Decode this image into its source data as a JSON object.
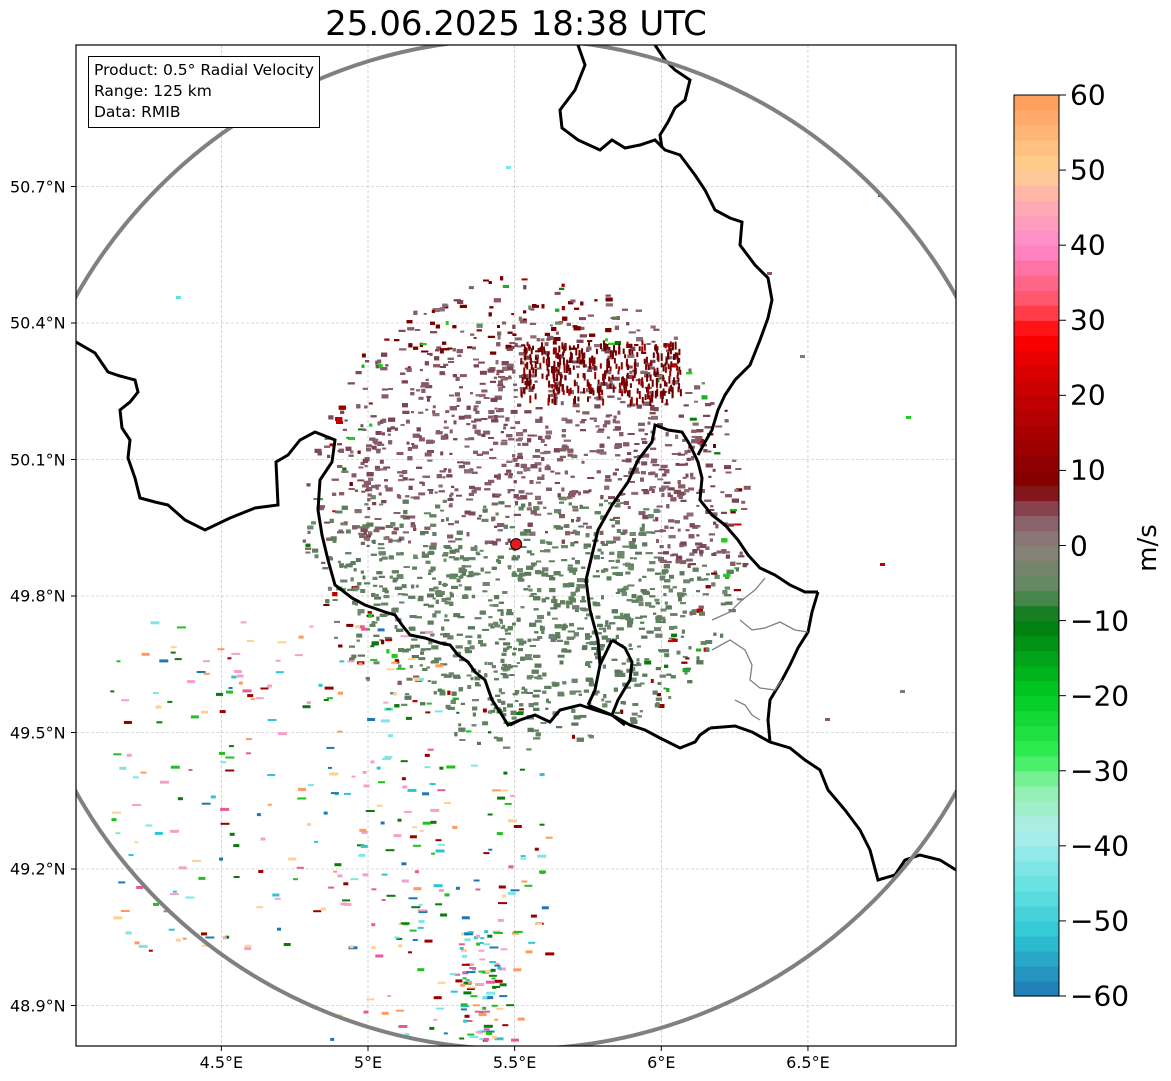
{
  "title": "25.06.2025 18:38 UTC",
  "infobox": {
    "product": "Product: 0.5° Radial Velocity",
    "range": "Range: 125 km",
    "data": "Data: RMIB"
  },
  "map": {
    "lon_range": [
      4.0,
      7.0
    ],
    "lat_range": [
      48.8,
      51.1
    ],
    "lat_ticks": [
      {
        "value": 50.7,
        "label": "50.7°N"
      },
      {
        "value": 50.4,
        "label": "50.4°N"
      },
      {
        "value": 50.1,
        "label": "50.1°N"
      },
      {
        "value": 49.8,
        "label": "49.8°N"
      },
      {
        "value": 49.5,
        "label": "49.5°N"
      },
      {
        "value": 49.2,
        "label": "49.2°N"
      },
      {
        "value": 48.9,
        "label": "48.9°N"
      }
    ],
    "lon_ticks": [
      {
        "value": 4.5,
        "label": "4.5°E"
      },
      {
        "value": 5.0,
        "label": "5°E"
      },
      {
        "value": 5.5,
        "label": "5.5°E"
      },
      {
        "value": 6.0,
        "label": "6°E"
      },
      {
        "value": 6.5,
        "label": "6.5°E"
      }
    ],
    "radar_site": {
      "lon": 5.505,
      "lat": 49.914,
      "color": "#e8191e"
    },
    "range_ring_color": "#808080",
    "border_color": "#000000",
    "admin_border_color": "#808080"
  },
  "colorbar": {
    "label": "m/s",
    "min": -60,
    "max": 60,
    "ticks": [
      {
        "value": 60,
        "label": "60"
      },
      {
        "value": 50,
        "label": "50"
      },
      {
        "value": 40,
        "label": "40"
      },
      {
        "value": 30,
        "label": "30"
      },
      {
        "value": 20,
        "label": "20"
      },
      {
        "value": 10,
        "label": "10"
      },
      {
        "value": 0,
        "label": "0"
      },
      {
        "value": -10,
        "label": "−10"
      },
      {
        "value": -20,
        "label": "−20"
      },
      {
        "value": -30,
        "label": "−30"
      },
      {
        "value": -40,
        "label": "−40"
      },
      {
        "value": -50,
        "label": "−50"
      },
      {
        "value": -60,
        "label": "−60"
      }
    ],
    "color_stops": [
      {
        "value": -60,
        "color": "#1f77b4"
      },
      {
        "value": -52,
        "color": "#2ec4d4"
      },
      {
        "value": -46,
        "color": "#5fe0e0"
      },
      {
        "value": -38,
        "color": "#b0eeee"
      },
      {
        "value": -32,
        "color": "#8ef0a8"
      },
      {
        "value": -28,
        "color": "#33ee55"
      },
      {
        "value": -20,
        "color": "#00cc22"
      },
      {
        "value": -10,
        "color": "#007a10"
      },
      {
        "value": -6,
        "color": "#5f8a5f"
      },
      {
        "value": 0,
        "color": "#8a8078"
      },
      {
        "value": 4,
        "color": "#8a5866"
      },
      {
        "value": 8,
        "color": "#800000"
      },
      {
        "value": 20,
        "color": "#c40000"
      },
      {
        "value": 28,
        "color": "#ff0000"
      },
      {
        "value": 32,
        "color": "#ff5060"
      },
      {
        "value": 40,
        "color": "#ff88cc"
      },
      {
        "value": 46,
        "color": "#ffb0b0"
      },
      {
        "value": 50,
        "color": "#ffd090"
      },
      {
        "value": 60,
        "color": "#ff9a5a"
      }
    ]
  }
}
